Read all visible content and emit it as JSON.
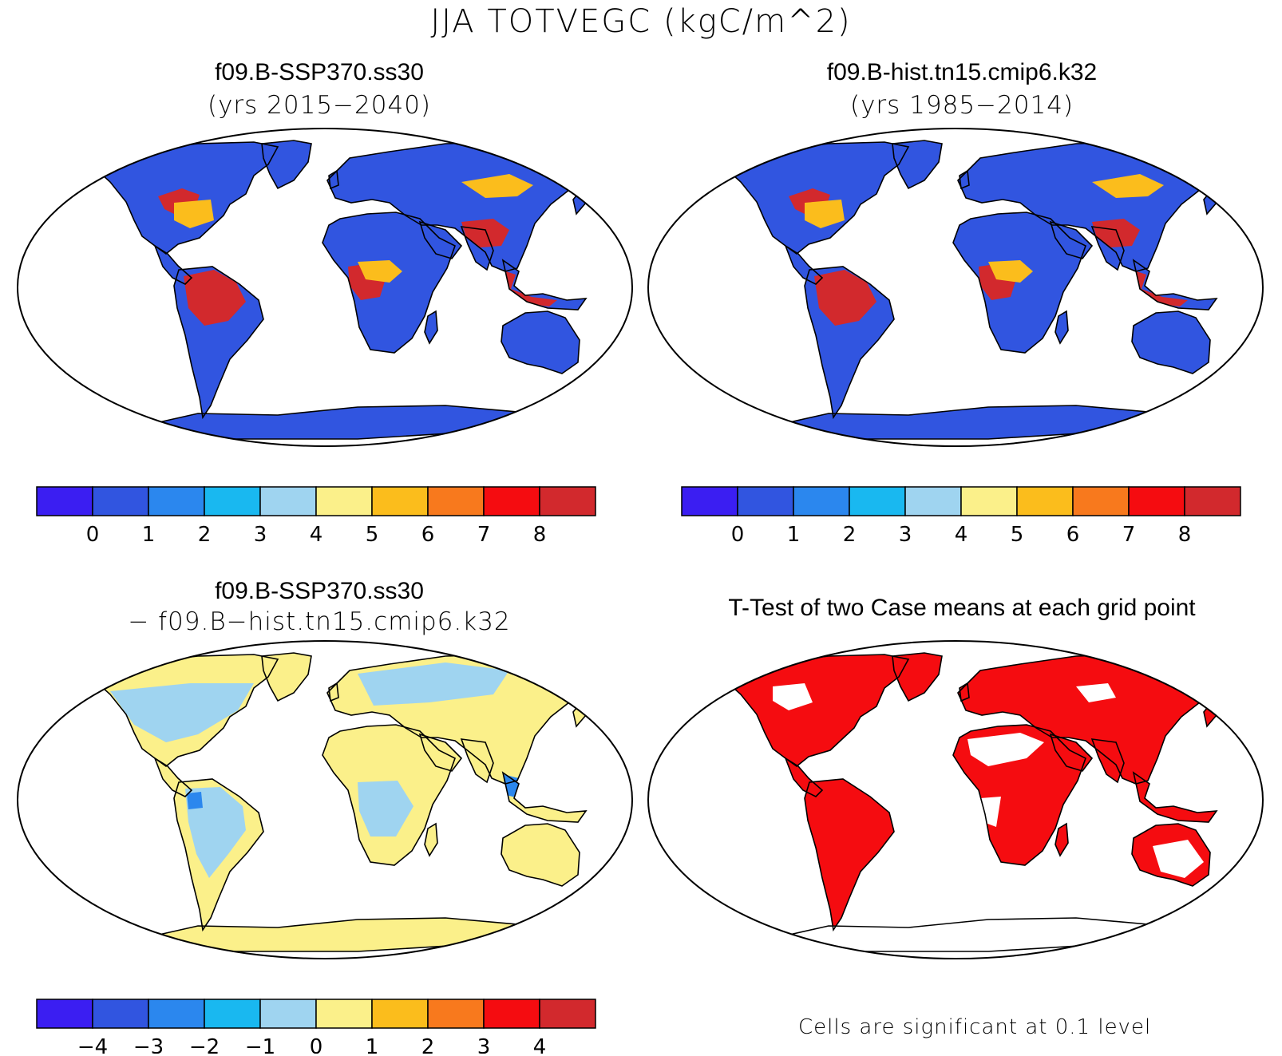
{
  "figure_title": "JJA TOTVEGC (kgC/m^2)",
  "panels": [
    {
      "title": "f09.B-SSP370.ss30",
      "subtitle": "(yrs 2015−2040)",
      "kind": "vegc"
    },
    {
      "title": "f09.B-hist.tn15.cmip6.k32",
      "subtitle": "(yrs 1985−2014)",
      "kind": "vegc"
    },
    {
      "title": "f09.B-SSP370.ss30",
      "subtitle": "− f09.B−hist.tn15.cmip6.k32",
      "kind": "diff"
    },
    {
      "title": "T-Test of two Case means at each grid point",
      "subtitle": "",
      "kind": "ttest"
    }
  ],
  "colorbars": {
    "absolute": {
      "colors": [
        "#3b1ef2",
        "#3155e0",
        "#2b87ee",
        "#19b8f0",
        "#9fd4f0",
        "#fbf08a",
        "#fbbd1c",
        "#f8791d",
        "#f50c10",
        "#d2292d"
      ],
      "tick_labels": [
        "0",
        "1",
        "2",
        "3",
        "4",
        "5",
        "6",
        "7",
        "8"
      ]
    },
    "difference": {
      "colors": [
        "#3b1ef2",
        "#3155e0",
        "#2b87ee",
        "#19b8f0",
        "#9fd4f0",
        "#fbf08a",
        "#fbbd1c",
        "#f8791d",
        "#f50c10",
        "#d2292d"
      ],
      "tick_labels": [
        "−4",
        "−3",
        "−2",
        "−1",
        "0",
        "1",
        "2",
        "3",
        "4"
      ]
    }
  },
  "significance_note": "Cells are significant at 0.1 level",
  "map_colors": {
    "land_low": "#3155e0",
    "tropical_high": "#d2292d",
    "mid": "#fbbd1c",
    "diff_land": "#fbf08a",
    "diff_neg": "#9fd4f0",
    "diff_neg_strong": "#2b87ee",
    "significant": "#f50c10",
    "outline": "#000000",
    "ocean": "#ffffff"
  }
}
